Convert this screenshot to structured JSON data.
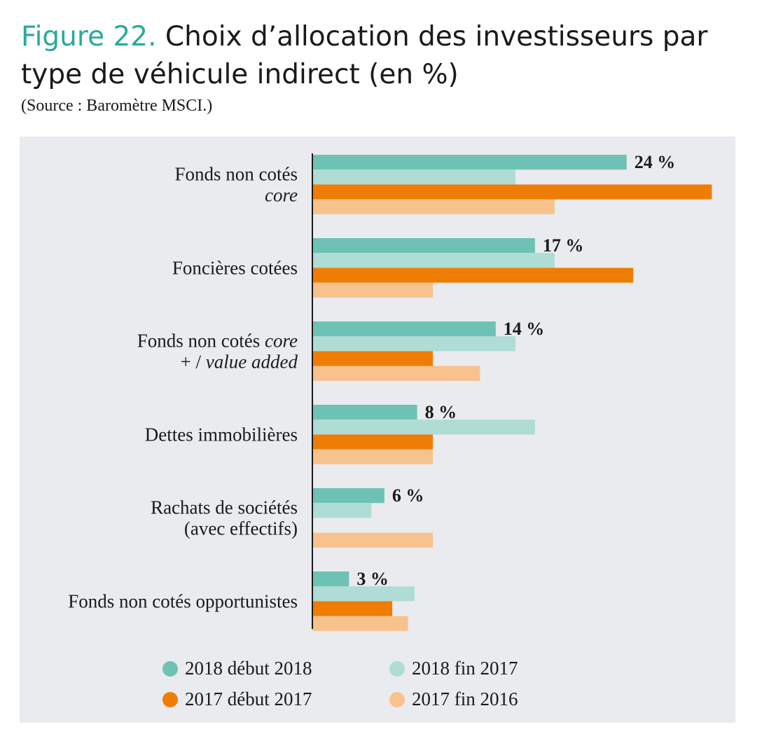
{
  "header": {
    "figure_label": "Figure 22.",
    "title": "Choix d’allocation des investisseurs par type de véhicule indirect (en %)",
    "source": "(Source : Baromètre MSCI.)"
  },
  "colors": {
    "s2018_debut": "#6ec2b5",
    "s2018_fin": "#afdcd5",
    "s2017_debut": "#ef7d05",
    "s2017_fin": "#f8c28d",
    "panel": "#e9ebee",
    "axis": "#1a1a1a"
  },
  "chart_data": {
    "type": "bar",
    "orientation": "horizontal",
    "title": "Choix d’allocation des investisseurs par type de véhicule indirect (en %)",
    "categories": [
      {
        "lines": [
          {
            "text": "Fonds non cotés ",
            "italic": ""
          },
          {
            "text": "",
            "italic": "core"
          }
        ],
        "label": "Fonds non cotés core"
      },
      {
        "lines": [
          {
            "text": "Foncières cotées",
            "italic": ""
          }
        ],
        "label": "Foncières cotées"
      },
      {
        "lines": [
          {
            "text": "Fonds non cotés ",
            "italic": "core"
          },
          {
            "text": "+ / ",
            "italic": "value added"
          }
        ],
        "label": "Fonds non cotés core + / value added"
      },
      {
        "lines": [
          {
            "text": "Dettes immobilières",
            "italic": ""
          }
        ],
        "label": "Dettes immobilières"
      },
      {
        "lines": [
          {
            "text": "Rachats de sociétés",
            "italic": ""
          },
          {
            "text": "(avec effectifs)",
            "italic": ""
          }
        ],
        "label": "Rachats de sociétés (avec effectifs)"
      },
      {
        "lines": [
          {
            "text": "Fonds non cotés opportunistes",
            "italic": ""
          }
        ],
        "label": "Fonds non cotés opportunistes"
      }
    ],
    "series": [
      {
        "name": "2018 début 2018",
        "color": "#6ec2b5",
        "values": [
          24,
          17,
          14,
          8,
          5.5,
          2.8
        ]
      },
      {
        "name": "2018 fin 2017",
        "color": "#afdcd5",
        "values": [
          15.5,
          18.5,
          15.5,
          17,
          4.5,
          7.8
        ]
      },
      {
        "name": "2017 début 2017",
        "color": "#ef7d05",
        "values": [
          30.5,
          24.5,
          9.2,
          9.2,
          0,
          6.1
        ]
      },
      {
        "name": "2017 fin 2016",
        "color": "#f8c28d",
        "values": [
          18.5,
          9.2,
          12.8,
          9.2,
          9.2,
          7.3
        ]
      }
    ],
    "data_labels": [
      "24 %",
      "17 %",
      "14 %",
      "8 %",
      "6 %",
      "3 %"
    ],
    "xlim": [
      0,
      32
    ],
    "grid": false,
    "legend_position": "bottom"
  },
  "legend": [
    {
      "label": "2018 début 2018",
      "color": "#6ec2b5"
    },
    {
      "label": "2018 fin 2017",
      "color": "#afdcd5"
    },
    {
      "label": "2017 début 2017",
      "color": "#ef7d05"
    },
    {
      "label": "2017 fin 2016",
      "color": "#f8c28d"
    }
  ]
}
